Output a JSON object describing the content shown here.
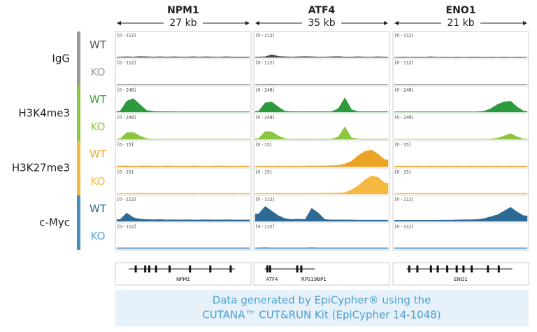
{
  "genes": [
    {
      "name": "NPM1",
      "size": "27 kb",
      "annotations": [
        "NPM1"
      ]
    },
    {
      "name": "ATF4",
      "size": "35 kb",
      "annotations": [
        "ATF4",
        "RPS19BP1"
      ]
    },
    {
      "name": "ENO1",
      "size": "21 kb",
      "annotations": [
        "ENO1"
      ]
    }
  ],
  "groups": [
    {
      "label": "IgG",
      "color": "#9a9a9a",
      "tracks": [
        {
          "label": "WT",
          "label_color": "#555555",
          "color": "#4a4a4a",
          "range": "[0 - 112]",
          "max": 112,
          "signals": [
            [
              3,
              4,
              3,
              5,
              4,
              3,
              4,
              3,
              4,
              3,
              3,
              4,
              3,
              4,
              3,
              3,
              4,
              3,
              3,
              3
            ],
            [
              3,
              4,
              15,
              6,
              4,
              3,
              4,
              5,
              4,
              3,
              3,
              4,
              5,
              3,
              3,
              4,
              3,
              3,
              4,
              3
            ],
            [
              2,
              3,
              2,
              3,
              2,
              4,
              2,
              3,
              2,
              3,
              2,
              3,
              3,
              2,
              3,
              2,
              3,
              2,
              3,
              2
            ]
          ]
        },
        {
          "label": "KO",
          "label_color": "#9a9a9a",
          "color": "#8a8a8a",
          "range": "[0 - 112]",
          "max": 112,
          "signals": [
            [
              2,
              2,
              2,
              2,
              2,
              2,
              2,
              2,
              2,
              2,
              2,
              2,
              2,
              2,
              2,
              2,
              2,
              2,
              2,
              2
            ],
            [
              2,
              2,
              3,
              2,
              2,
              2,
              2,
              2,
              2,
              2,
              2,
              2,
              2,
              2,
              2,
              2,
              2,
              2,
              2,
              2
            ],
            [
              2,
              2,
              2,
              2,
              2,
              2,
              2,
              2,
              2,
              2,
              2,
              2,
              2,
              2,
              2,
              2,
              2,
              2,
              2,
              2
            ]
          ]
        }
      ]
    },
    {
      "label": "H3K4me3",
      "color": "#8cc63f",
      "tracks": [
        {
          "label": "WT",
          "label_color": "#3a9a3a",
          "color": "#2e9a3e",
          "range": "[0 - 248]",
          "max": 248,
          "signals": [
            [
              10,
              130,
              160,
              90,
              20,
              8,
              6,
              5,
              5,
              4,
              4,
              5,
              4,
              4,
              4,
              4,
              4,
              4,
              4,
              4
            ],
            [
              10,
              110,
              120,
              60,
              10,
              6,
              5,
              5,
              6,
              5,
              5,
              6,
              40,
              170,
              30,
              6,
              5,
              5,
              5,
              5
            ],
            [
              4,
              4,
              4,
              4,
              4,
              4,
              4,
              4,
              4,
              4,
              4,
              4,
              4,
              10,
              40,
              90,
              120,
              130,
              60,
              10
            ]
          ]
        },
        {
          "label": "KO",
          "label_color": "#8cc63f",
          "color": "#8cc63f",
          "range": "[0 - 248]",
          "max": 248,
          "signals": [
            [
              8,
              80,
              85,
              40,
              10,
              5,
              4,
              4,
              4,
              4,
              4,
              4,
              4,
              4,
              4,
              4,
              4,
              4,
              4,
              4
            ],
            [
              10,
              95,
              90,
              40,
              8,
              5,
              5,
              5,
              5,
              5,
              5,
              5,
              30,
              150,
              20,
              5,
              5,
              5,
              5,
              5
            ],
            [
              3,
              3,
              3,
              3,
              3,
              3,
              3,
              3,
              3,
              3,
              3,
              3,
              3,
              3,
              5,
              15,
              40,
              70,
              30,
              6
            ]
          ]
        }
      ]
    },
    {
      "label": "H3K27me3",
      "color": "#f5b840",
      "tracks": [
        {
          "label": "WT",
          "label_color": "#f0a830",
          "color": "#eaa325",
          "range": "[0 - 15]",
          "max": 15,
          "signals": [
            [
              0.5,
              0.6,
              0.4,
              0.5,
              0.6,
              0.5,
              0.4,
              0.6,
              0.5,
              0.5,
              0.4,
              0.6,
              0.5,
              0.4,
              0.5,
              0.6,
              0.5,
              0.4,
              0.5,
              0.5
            ],
            [
              0.4,
              0.5,
              0.4,
              0.5,
              0.4,
              0.5,
              0.4,
              0.5,
              0.6,
              0.5,
              0.6,
              0.8,
              1,
              2,
              4,
              8,
              11,
              12,
              9,
              5
            ],
            [
              0.4,
              0.5,
              0.4,
              0.5,
              0.4,
              0.5,
              0.4,
              0.5,
              0.4,
              0.5,
              0.4,
              0.5,
              0.4,
              0.5,
              0.4,
              0.5,
              0.4,
              0.5,
              0.4,
              0.5
            ]
          ]
        },
        {
          "label": "KO",
          "label_color": "#f5b840",
          "color": "#f5b840",
          "range": "[0 - 15]",
          "max": 15,
          "signals": [
            [
              0.4,
              0.5,
              0.4,
              0.6,
              0.4,
              0.5,
              0.4,
              0.5,
              0.4,
              0.5,
              0.4,
              0.5,
              0.4,
              0.5,
              0.4,
              0.5,
              0.4,
              0.5,
              0.4,
              0.5
            ],
            [
              0.4,
              0.5,
              0.4,
              0.5,
              0.4,
              0.5,
              0.4,
              0.5,
              0.5,
              0.5,
              0.6,
              0.6,
              0.8,
              1,
              3,
              6,
              10,
              13,
              12,
              8
            ],
            [
              0.4,
              0.5,
              0.4,
              0.5,
              0.4,
              0.5,
              0.4,
              0.5,
              0.4,
              0.5,
              0.4,
              0.5,
              0.4,
              0.5,
              0.4,
              0.5,
              0.4,
              0.5,
              0.4,
              0.5
            ]
          ]
        }
      ]
    },
    {
      "label": "c-Myc",
      "color": "#4a8fc0",
      "tracks": [
        {
          "label": "WT",
          "label_color": "#2d6b96",
          "color": "#2d6b96",
          "range": "[0 - 112]",
          "max": 112,
          "signals": [
            [
              10,
              45,
              20,
              12,
              10,
              9,
              10,
              8,
              9,
              8,
              9,
              8,
              8,
              9,
              8,
              8,
              9,
              8,
              8,
              8
            ],
            [
              40,
              80,
              55,
              30,
              15,
              10,
              12,
              10,
              70,
              45,
              10,
              8,
              8,
              8,
              8,
              7,
              7,
              7,
              7,
              7
            ],
            [
              6,
              6,
              6,
              6,
              6,
              6,
              7,
              7,
              7,
              8,
              9,
              9,
              10,
              15,
              25,
              35,
              55,
              75,
              50,
              30
            ]
          ]
        },
        {
          "label": "KO",
          "label_color": "#5aa0d0",
          "color": "#5aa0d0",
          "range": "[0 - 112]",
          "max": 112,
          "signals": [
            [
              5,
              5,
              5,
              5,
              5,
              5,
              5,
              5,
              5,
              5,
              5,
              5,
              5,
              5,
              5,
              5,
              5,
              5,
              5,
              5
            ],
            [
              5,
              6,
              5,
              5,
              5,
              5,
              5,
              5,
              6,
              5,
              5,
              5,
              5,
              5,
              5,
              5,
              5,
              5,
              5,
              5
            ],
            [
              5,
              5,
              5,
              5,
              5,
              5,
              5,
              5,
              5,
              5,
              5,
              5,
              5,
              5,
              5,
              5,
              5,
              5,
              5,
              5
            ]
          ]
        }
      ]
    }
  ],
  "footer": [
    "Data generated by EpiCypher® using the",
    "CUTANA™ CUT&RUN Kit (EpiCypher 14-1048)"
  ]
}
